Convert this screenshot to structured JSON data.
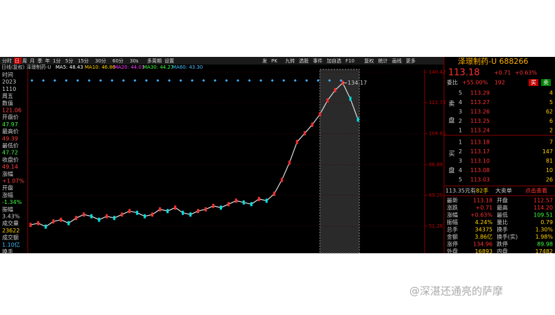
{
  "toolbar": {
    "periods": [
      "分时",
      "日",
      "周",
      "月",
      "季",
      "年",
      "1分",
      "5分",
      "15分",
      "30分",
      "60分",
      "30s",
      "多周期",
      "设置"
    ],
    "tools": [
      "发",
      "PK",
      "九转",
      "选股",
      "事件",
      "加自选",
      "F10",
      "复权",
      "统计",
      "画线",
      "更多"
    ]
  },
  "indicator": {
    "mode": "日线(复权)",
    "name": "泽璟制药-U",
    "ma": [
      {
        "text": "MA5: 48.43",
        "color": "#ffffff"
      },
      {
        "text": "MA10: 46.86",
        "color": "#ffd200"
      },
      {
        "text": "MA20: 44.01",
        "color": "#ff40ff"
      },
      {
        "text": "MA30: 44.27",
        "color": "#40ff40"
      },
      {
        "text": "MA60: 43.30",
        "color": "#40c0ff"
      }
    ]
  },
  "info_panel": [
    {
      "text": "时间",
      "color": "#cccccc"
    },
    {
      "text": "2023",
      "color": "#cccccc"
    },
    {
      "text": "1110",
      "color": "#cccccc"
    },
    {
      "text": "周五",
      "color": "#cccccc"
    },
    {
      "text": "数值",
      "color": "#cccccc"
    },
    {
      "text": "121.06",
      "color": "#ff4040"
    },
    {
      "text": "开盘价",
      "color": "#cccccc"
    },
    {
      "text": "47.97",
      "color": "#40ff40"
    },
    {
      "text": "最高价",
      "color": "#cccccc"
    },
    {
      "text": "49.39",
      "color": "#ff4040"
    },
    {
      "text": "最低价",
      "color": "#cccccc"
    },
    {
      "text": "47.72",
      "color": "#40ff40"
    },
    {
      "text": "收盘价",
      "color": "#cccccc"
    },
    {
      "text": "49.14",
      "color": "#ff4040"
    },
    {
      "text": "涨幅",
      "color": "#cccccc"
    },
    {
      "text": "+1.07%",
      "color": "#ff4040"
    },
    {
      "text": "开盘",
      "color": "#cccccc"
    },
    {
      "text": "涨幅",
      "color": "#cccccc"
    },
    {
      "text": "-1.34%",
      "color": "#40ff40"
    },
    {
      "text": "振幅",
      "color": "#cccccc"
    },
    {
      "text": "3.43%",
      "color": "#cccccc"
    },
    {
      "text": "成交量",
      "color": "#cccccc"
    },
    {
      "text": "23622",
      "color": "#ffd200"
    },
    {
      "text": "成交额",
      "color": "#cccccc"
    },
    {
      "text": "1.10亿",
      "color": "#40c0ff"
    },
    {
      "text": "换手",
      "color": "#cccccc"
    }
  ],
  "chart_data": {
    "type": "line",
    "color": "#e0e0e0",
    "ylim": [
      35.6,
      142
    ],
    "yticks": [
      140.42,
      122.73,
      104.81,
      86.89,
      {
        "value": 69.2,
        "label": "69.20"
      },
      51.28
    ],
    "values": [
      52,
      53,
      51,
      54,
      55,
      53,
      56,
      58,
      57,
      55,
      57,
      56,
      58,
      60,
      59,
      57,
      58,
      61,
      60,
      62,
      59,
      58,
      60,
      61,
      63,
      62,
      64,
      66,
      65,
      64,
      67,
      66,
      70,
      78,
      88,
      100,
      105,
      110,
      116,
      124,
      130,
      134.17,
      125,
      113
    ],
    "annotation": "134.17"
  },
  "quote": {
    "name": "泽璟制药-U 688266",
    "price": "113.18",
    "change": "+0.71",
    "change_pct": "+0.63%",
    "ratio_label": "委比",
    "ratio": "+55.00%",
    "ratio_diff": "192",
    "buy_btn": "买",
    "sell_btn": "卖",
    "sell_side": [
      "卖",
      "盘"
    ],
    "buy_side": [
      "买",
      "盘"
    ],
    "asks": [
      [
        "5",
        "113.29",
        "4"
      ],
      [
        "4",
        "113.27",
        "5"
      ],
      [
        "3",
        "113.26",
        "62"
      ],
      [
        "2",
        "113.25",
        "6"
      ],
      [
        "1",
        "113.24",
        "2"
      ]
    ],
    "bids": [
      [
        "1",
        "113.18",
        "7"
      ],
      [
        "2",
        "113.17",
        "147"
      ],
      [
        "3",
        "113.10",
        "81"
      ],
      [
        "4",
        "113.08",
        "10"
      ],
      [
        "5",
        "113.03",
        "26"
      ]
    ],
    "big_order": [
      "113.35元有",
      "82手",
      "大卖单",
      "点击查看"
    ],
    "stats": [
      [
        "最新",
        "113.18",
        "开盘",
        "112.57"
      ],
      [
        "涨跌",
        "+0.71",
        "最高",
        "114.20"
      ],
      [
        "涨幅",
        "+0.63%",
        "最低",
        "109.51"
      ],
      [
        "振幅",
        "4.24%",
        "量比",
        "0.79"
      ],
      [
        "总手",
        "34375",
        "换手",
        "1.30%"
      ],
      [
        "金额",
        "3.86亿",
        "换手(实)",
        "1.98%"
      ],
      [
        "涨停",
        "134.96",
        "跌停",
        "89.98"
      ],
      [
        "外盘",
        "16893",
        "内盘",
        "17482"
      ]
    ]
  },
  "watermark": "@深湛还通亮的萨摩"
}
